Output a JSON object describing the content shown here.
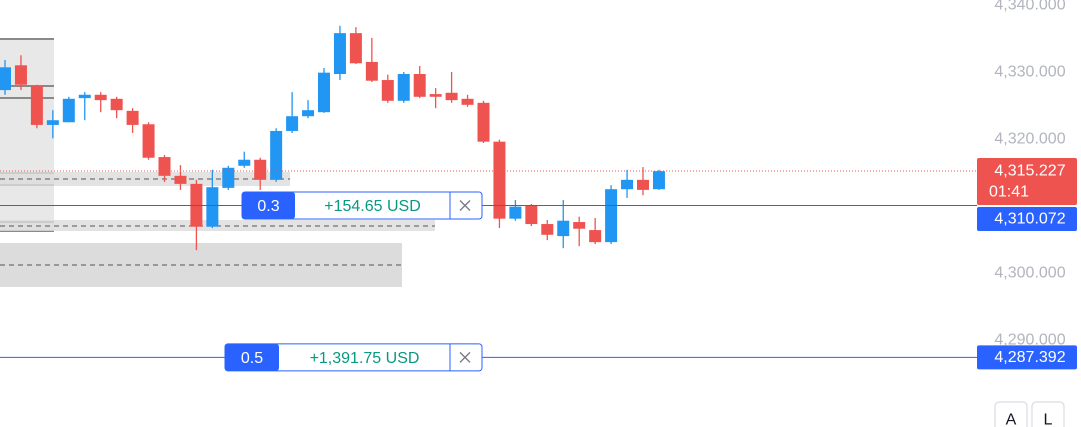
{
  "chart_data": {
    "type": "candlestick",
    "open": [
      4327.3,
      4331.0,
      4327.9,
      4322.1,
      4322.5,
      4326.1,
      4326.6,
      4326.0,
      4324.2,
      4322.2,
      4317.3,
      4314.5,
      4313.3,
      4306.9,
      4312.7,
      4316.0,
      4316.9,
      4313.9,
      4321.2,
      4323.4,
      4324.0,
      4329.7,
      4335.8,
      4331.5,
      4328.8,
      4325.7,
      4329.7,
      4326.7,
      4326.9,
      4326.0,
      4325.4,
      4319.6,
      4308.1,
      4310.0,
      4307.3,
      4305.5,
      4307.6,
      4306.4,
      4304.6,
      4312.5,
      4313.9,
      4312.5
    ],
    "high": [
      4331.8,
      4332.5,
      4328.1,
      4324.3,
      4326.3,
      4327.0,
      4327.0,
      4326.3,
      4324.6,
      4322.5,
      4317.6,
      4316.1,
      4313.9,
      4315.4,
      4316.0,
      4318.1,
      4317.2,
      4321.6,
      4327.0,
      4325.8,
      4330.6,
      4336.9,
      4336.7,
      4335.1,
      4329.6,
      4330.0,
      4330.9,
      4327.6,
      4330.0,
      4326.6,
      4325.7,
      4319.9,
      4310.9,
      4310.3,
      4307.9,
      4310.9,
      4308.4,
      4308.2,
      4313.1,
      4315.4,
      4315.8,
      4315.4
    ],
    "low": [
      4326.6,
      4327.3,
      4321.6,
      4320.1,
      4322.5,
      4322.8,
      4324.0,
      4323.1,
      4320.9,
      4316.9,
      4313.6,
      4312.4,
      4303.4,
      4306.7,
      4312.4,
      4315.7,
      4312.4,
      4313.6,
      4320.9,
      4323.1,
      4323.9,
      4328.8,
      4331.2,
      4328.5,
      4325.4,
      4325.4,
      4326.1,
      4324.6,
      4325.4,
      4324.8,
      4319.4,
      4306.7,
      4307.8,
      4307.0,
      4304.9,
      4303.7,
      4304.0,
      4304.3,
      4304.3,
      4311.2,
      4311.6,
      4312.4
    ],
    "close": [
      4330.7,
      4328.1,
      4322.1,
      4322.8,
      4326.0,
      4326.6,
      4325.8,
      4324.3,
      4322.1,
      4317.2,
      4314.5,
      4313.3,
      4306.9,
      4312.8,
      4315.7,
      4316.9,
      4313.9,
      4321.2,
      4323.4,
      4324.3,
      4329.9,
      4335.8,
      4331.3,
      4328.7,
      4325.7,
      4329.7,
      4326.3,
      4326.3,
      4325.8,
      4325.1,
      4319.6,
      4308.1,
      4309.9,
      4307.3,
      4305.7,
      4307.8,
      4306.6,
      4304.6,
      4312.5,
      4313.9,
      4312.4,
      4315.2
    ],
    "up_color": "#2196f3",
    "down_color": "#ef5350",
    "ylim": [
      4277.0,
      4340.75
    ],
    "yticks": [
      {
        "value": 4340,
        "label": "4,340.000"
      },
      {
        "value": 4330,
        "label": "4,330.000"
      },
      {
        "value": 4320,
        "label": "4,320.000"
      },
      {
        "value": 4300,
        "label": "4,300.000"
      },
      {
        "value": 4290,
        "label": "4,290.000"
      }
    ],
    "last_price": {
      "value": 4315.227,
      "label": "4,315.227",
      "countdown": "01:41"
    },
    "orders": [
      {
        "price": 4310.072,
        "price_label": "4,310.072",
        "quantity": 0.3,
        "pnl": "+154.65 USD"
      },
      {
        "price": 4287.392,
        "price_label": "4,287.392",
        "quantity": 0.5,
        "pnl": "+1,391.75 USD"
      }
    ]
  },
  "toolbar": [
    "A",
    "L"
  ]
}
